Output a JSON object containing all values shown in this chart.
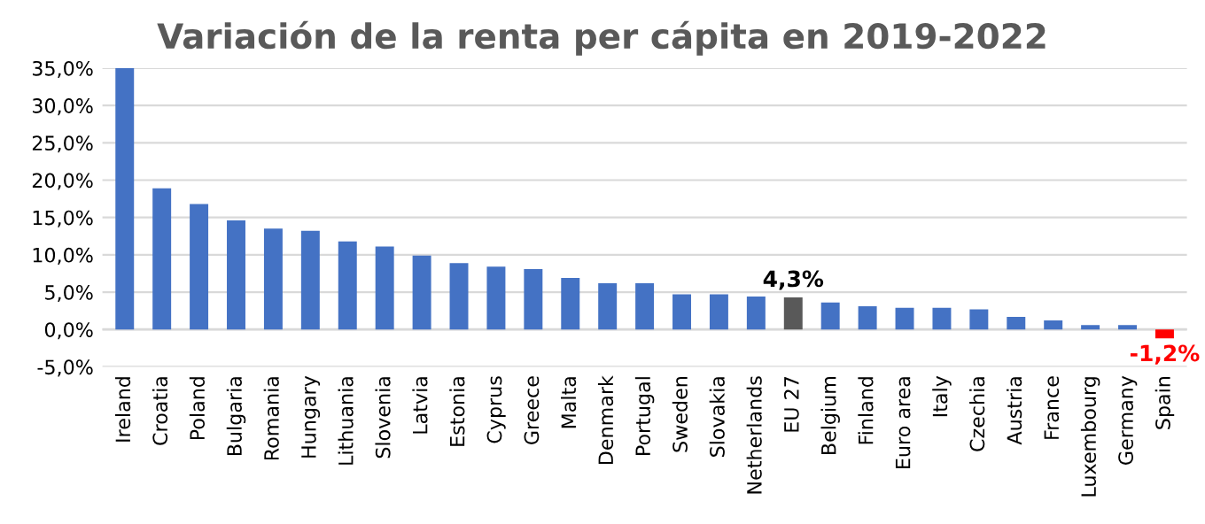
{
  "chart_data": {
    "type": "bar",
    "title": "Variación de la renta per cápita en 2019-2022",
    "categories": [
      "Ireland",
      "Croatia",
      "Poland",
      "Bulgaria",
      "Romania",
      "Hungary",
      "Lithuania",
      "Slovenia",
      "Latvia",
      "Estonia",
      "Cyprus",
      "Greece",
      "Malta",
      "Denmark",
      "Portugal",
      "Sweden",
      "Slovakia",
      "Netherlands",
      "EU 27",
      "Belgium",
      "Finland",
      "Euro area",
      "Italy",
      "Czechia",
      "Austria",
      "France",
      "Luxembourg",
      "Germany",
      "Spain"
    ],
    "values": [
      35.0,
      18.9,
      16.8,
      14.6,
      13.5,
      13.2,
      11.8,
      11.1,
      9.9,
      8.9,
      8.4,
      8.1,
      6.9,
      6.2,
      6.2,
      4.7,
      4.7,
      4.4,
      4.3,
      3.6,
      3.1,
      2.9,
      2.9,
      2.7,
      1.7,
      1.2,
      0.6,
      0.6,
      -1.2
    ],
    "colors": [
      "#4472c4",
      "#4472c4",
      "#4472c4",
      "#4472c4",
      "#4472c4",
      "#4472c4",
      "#4472c4",
      "#4472c4",
      "#4472c4",
      "#4472c4",
      "#4472c4",
      "#4472c4",
      "#4472c4",
      "#4472c4",
      "#4472c4",
      "#4472c4",
      "#4472c4",
      "#4472c4",
      "#595959",
      "#4472c4",
      "#4472c4",
      "#4472c4",
      "#4472c4",
      "#4472c4",
      "#4472c4",
      "#4472c4",
      "#4472c4",
      "#4472c4",
      "#ff0000"
    ],
    "value_labels": [
      null,
      null,
      null,
      null,
      null,
      null,
      null,
      null,
      null,
      null,
      null,
      null,
      null,
      null,
      null,
      null,
      null,
      null,
      "4,3%",
      null,
      null,
      null,
      null,
      null,
      null,
      null,
      null,
      null,
      "-1,2%"
    ],
    "ylim": [
      -5,
      35
    ],
    "yticks": [
      {
        "value": -5,
        "label": "-5,0%"
      },
      {
        "value": 0,
        "label": "0,0%"
      },
      {
        "value": 5,
        "label": "5,0%"
      },
      {
        "value": 10,
        "label": "10,0%"
      },
      {
        "value": 15,
        "label": "15,0%"
      },
      {
        "value": 20,
        "label": "20,0%"
      },
      {
        "value": 25,
        "label": "25,0%"
      },
      {
        "value": 30,
        "label": "30,0%"
      },
      {
        "value": 35,
        "label": "35,0%"
      }
    ],
    "grid": "y"
  }
}
